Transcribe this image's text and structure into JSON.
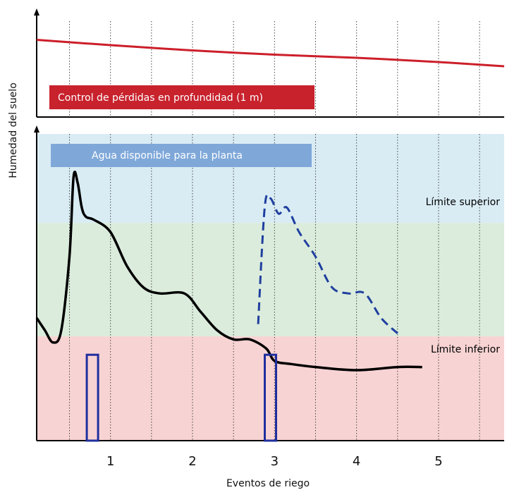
{
  "chart_data": {
    "type": "line",
    "xlabel": "Eventos de riego",
    "ylabel": "Humedad del suelo",
    "x_ticks": [
      1,
      2,
      3,
      4,
      5
    ],
    "xlim": [
      0.1,
      5.8
    ],
    "grid": "vertical dotted lines",
    "top_panel": {
      "label": "Control de pérdidas en profundidad (1 m)",
      "series": [
        {
          "x": [
            0.1,
            1,
            2,
            3,
            4,
            5,
            5.8
          ],
          "y": [
            0.73,
            0.68,
            0.63,
            0.59,
            0.56,
            0.52,
            0.48
          ]
        }
      ],
      "ylim": [
        0,
        1
      ]
    },
    "bottom_panel": {
      "ylim": [
        0,
        100
      ],
      "zones": [
        {
          "label": "Agua disponible para la planta",
          "from": 71,
          "to": 100,
          "color": "#d9ecf4"
        },
        {
          "label": "Límite superior",
          "from": 34,
          "to": 71,
          "color": "#dbecdc"
        },
        {
          "label": "Límite inferior",
          "from": 0,
          "to": 34,
          "color": "#f8d3d3"
        }
      ],
      "series": [
        {
          "style": "solid",
          "color": "#000000",
          "x": [
            0.1,
            0.2,
            0.3,
            0.4,
            0.5,
            0.55,
            0.6,
            0.65,
            0.7,
            0.8,
            1.0,
            1.2,
            1.4,
            1.6,
            1.9,
            2.1,
            2.3,
            2.5,
            2.7,
            2.9,
            3.0,
            3.2,
            3.5,
            4.0,
            4.5,
            4.8
          ],
          "y": [
            40,
            36,
            32,
            36,
            60,
            86,
            84,
            76,
            73,
            72,
            68,
            57,
            50,
            48,
            48,
            42,
            36,
            33,
            33,
            30,
            26,
            25,
            24,
            23,
            24,
            24
          ]
        },
        {
          "style": "dashed",
          "color": "#1f3f9f",
          "x": [
            2.8,
            2.88,
            2.95,
            3.05,
            3.15,
            3.3,
            3.5,
            3.7,
            3.9,
            4.1,
            4.3,
            4.5
          ],
          "y": [
            38,
            76,
            79,
            74,
            76,
            68,
            60,
            50,
            48,
            48,
            40,
            35
          ]
        }
      ],
      "irrigation_events": [
        {
          "x": 0.78,
          "height": 28
        },
        {
          "x": 2.95,
          "height": 28
        }
      ]
    },
    "colors": {
      "loss_line": "#cc1f2a",
      "loss_label_bg": "#c8222d",
      "agua_label_bg": "#7fa8d9",
      "irrigation": "#1f2f9f"
    }
  }
}
